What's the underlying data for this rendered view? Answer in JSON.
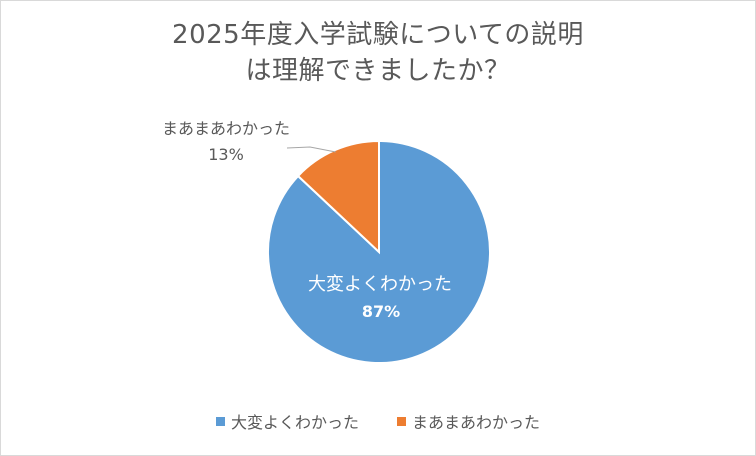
{
  "chart_data": {
    "type": "pie",
    "title_lines": [
      "2025年度入学試験についての説明",
      "は理解できましたか？"
    ],
    "slices": [
      {
        "name": "大変よくわかった",
        "value": 87,
        "label": "87%",
        "color": "#5b9bd5"
      },
      {
        "name": "まあまあわかった",
        "value": 13,
        "label": "13%",
        "color": "#ed7d31"
      }
    ],
    "legend_position": "bottom"
  }
}
